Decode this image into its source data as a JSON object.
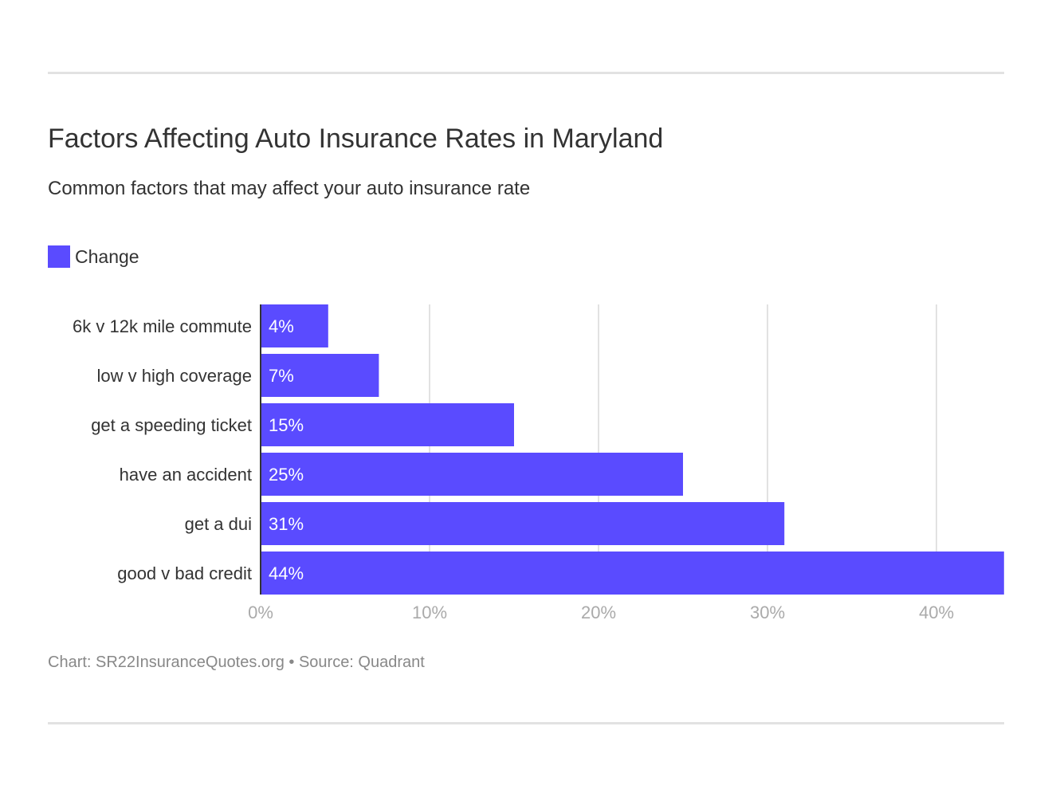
{
  "chart_data": {
    "type": "bar",
    "orientation": "horizontal",
    "title": "Factors Affecting Auto Insurance Rates in Maryland",
    "subtitle": "Common factors that may affect your auto insurance rate",
    "categories": [
      "6k v 12k mile commute",
      "low v high coverage",
      "get a speeding ticket",
      "have an accident",
      "get a dui",
      "good v bad credit"
    ],
    "series": [
      {
        "name": "Change",
        "values": [
          4,
          7,
          15,
          25,
          31,
          44
        ],
        "color": "#5a4bff"
      }
    ],
    "data_labels": [
      "4%",
      "7%",
      "15%",
      "25%",
      "31%",
      "44%"
    ],
    "xlim": [
      0,
      44
    ],
    "xticks": [
      0,
      10,
      20,
      30,
      40
    ],
    "xtick_labels": [
      "0%",
      "10%",
      "20%",
      "30%",
      "40%"
    ],
    "grid": true,
    "legend_position": "top-left"
  },
  "footer": "Chart: SR22InsuranceQuotes.org • Source: Quadrant"
}
